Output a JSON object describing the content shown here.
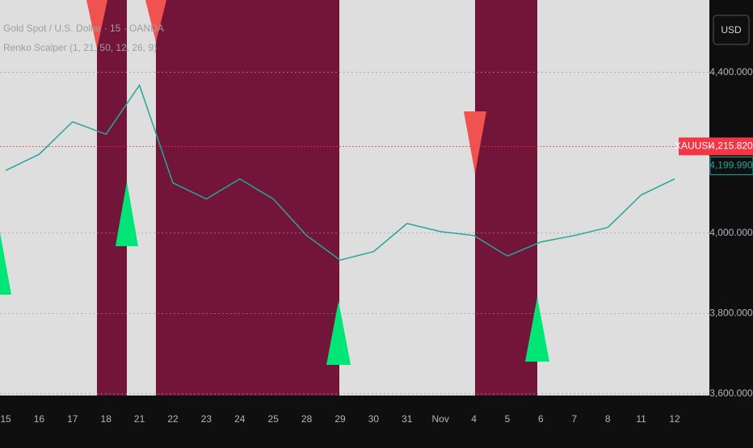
{
  "chart_data": {
    "type": "line",
    "title": "Gold Spot / U.S. Dollar · 15 · OANDA",
    "subtitle": "Renko Scalper (1, 21, 50, 12, 26, 9)",
    "currency": "USD",
    "symbol": "XAUUSD",
    "last_price": {
      "value": 4215.82,
      "label": "4,215.820"
    },
    "prev_price": {
      "value": 4199.99,
      "label": "4,199.990"
    },
    "categories": [
      "15",
      "16",
      "17",
      "18",
      "21",
      "22",
      "23",
      "24",
      "25",
      "28",
      "29",
      "30",
      "31",
      "Nov",
      "4",
      "5",
      "6",
      "7",
      "8",
      "11",
      "12"
    ],
    "series": [
      {
        "name": "XAUUSD",
        "color": "#26a69a",
        "values": [
          4156,
          4196,
          4277,
          4246,
          4368,
          4125,
          4085,
          4135,
          4085,
          3994,
          3933,
          3954,
          4024,
          4004,
          3994,
          3943,
          3978,
          3994,
          4014,
          4095,
          4135
        ]
      }
    ],
    "ylim": [
      3596,
      4580
    ],
    "yticks": [
      {
        "value": 3600,
        "label": "3,600.000"
      },
      {
        "value": 3800,
        "label": "3,800.000"
      },
      {
        "value": 4000,
        "label": "4,000.000"
      },
      {
        "value": 4400,
        "label": "4,400.000"
      }
    ],
    "grid": true
  }
}
